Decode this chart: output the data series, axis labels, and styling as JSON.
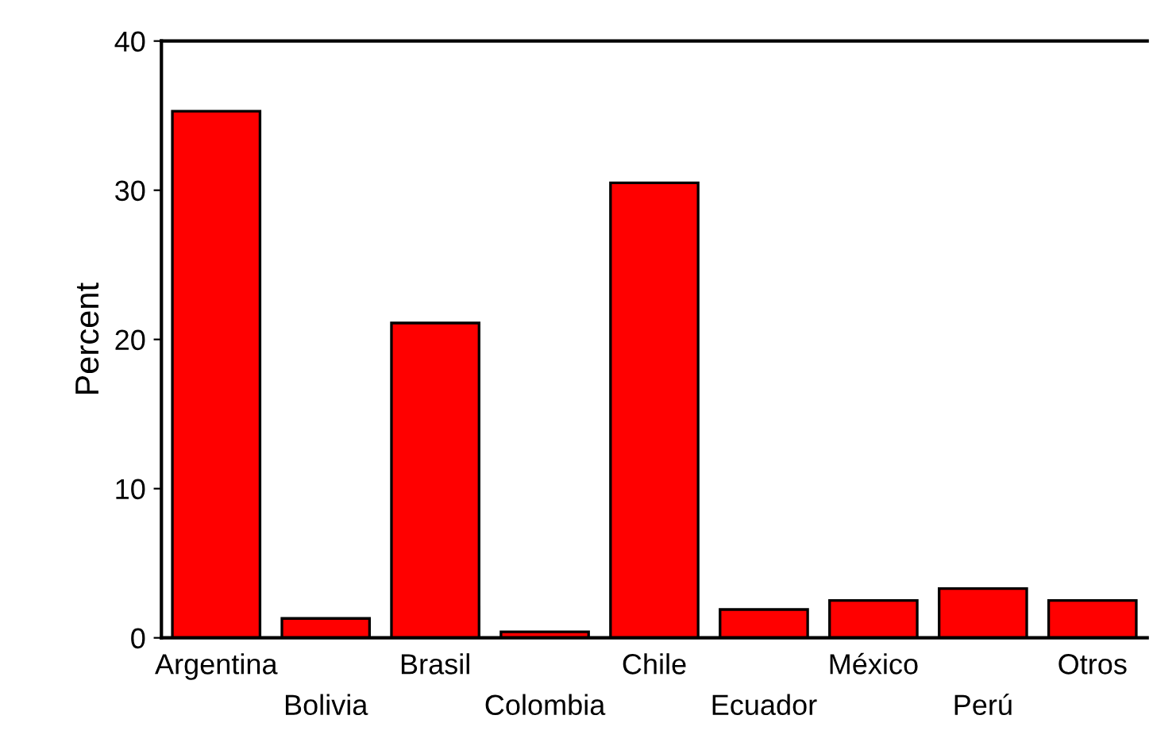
{
  "chart_data": {
    "type": "bar",
    "ylabel": "Percent",
    "categories": [
      "Argentina",
      "Bolivia",
      "Brasil",
      "Colombia",
      "Chile",
      "Ecuador",
      "México",
      "Perú",
      "Otros"
    ],
    "values": [
      35.3,
      1.3,
      21.1,
      0.4,
      30.5,
      1.9,
      2.5,
      3.3,
      2.5
    ],
    "color": "#ff0000",
    "ylim": [
      0,
      40
    ],
    "yticks": [
      0,
      10,
      20,
      30,
      40
    ],
    "grid": false,
    "legend": false
  }
}
